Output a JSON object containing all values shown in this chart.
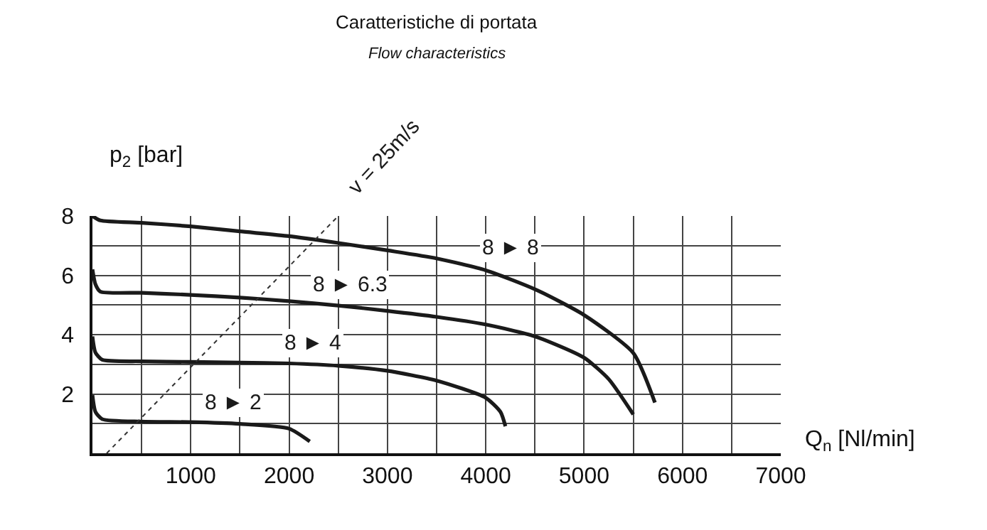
{
  "chart_data": {
    "type": "line",
    "title": "Caratteristiche di portata",
    "subtitle": "Flow characteristics",
    "xlabel": "Q$_{n}$ [Nl/min]",
    "ylabel": "p$_{2}$ [bar]",
    "xlim": [
      0,
      7000
    ],
    "ylim": [
      0,
      8
    ],
    "xticks": [
      {
        "value": 500,
        "label": null
      },
      1000,
      {
        "value": 1500,
        "label": null
      },
      2000,
      {
        "value": 2500,
        "label": null
      },
      3000,
      {
        "value": 3500,
        "label": null
      },
      4000,
      {
        "value": 4500,
        "label": null
      },
      5000,
      {
        "value": 5500,
        "label": null
      },
      6000,
      {
        "value": 6500,
        "label": null
      },
      7000
    ],
    "yticks": [
      {
        "value": 1,
        "label": null
      },
      2,
      {
        "value": 3,
        "label": null
      },
      4,
      {
        "value": 5,
        "label": null
      },
      6,
      {
        "value": 7,
        "label": null
      },
      8
    ],
    "grid": true,
    "legend": false,
    "marker": "none",
    "series": [
      {
        "name": "8 ► 8",
        "color": "#1a1a1a",
        "x": [
          0,
          80,
          500,
          1000,
          1500,
          2000,
          2500,
          3000,
          3500,
          4000,
          4500,
          5000,
          5500,
          5720
        ],
        "values": [
          8.0,
          7.85,
          7.77,
          7.65,
          7.48,
          7.32,
          7.09,
          6.84,
          6.57,
          6.17,
          5.53,
          4.66,
          3.38,
          1.71
        ]
      },
      {
        "name": "8 ► 6.3",
        "color": "#1a1a1a",
        "x": [
          0,
          30,
          80,
          500,
          1000,
          1500,
          2000,
          2500,
          3000,
          3500,
          4000,
          4500,
          5000,
          5250,
          5500
        ],
        "values": [
          6.2,
          5.7,
          5.45,
          5.41,
          5.34,
          5.25,
          5.13,
          4.98,
          4.8,
          4.6,
          4.34,
          3.94,
          3.22,
          2.5,
          1.31
        ]
      },
      {
        "name": "8 ► 4",
        "color": "#1a1a1a",
        "x": [
          0,
          30,
          100,
          500,
          1000,
          1500,
          2000,
          2500,
          3000,
          3500,
          4000,
          4150,
          4200
        ],
        "values": [
          3.94,
          3.4,
          3.15,
          3.1,
          3.08,
          3.06,
          3.03,
          2.95,
          2.78,
          2.45,
          1.87,
          1.39,
          0.91
        ]
      },
      {
        "name": "8 ► 2",
        "color": "#1a1a1a",
        "x": [
          0,
          30,
          100,
          500,
          1000,
          1500,
          2000,
          2210
        ],
        "values": [
          1.96,
          1.4,
          1.15,
          1.07,
          1.05,
          0.99,
          0.83,
          0.4
        ]
      },
      {
        "name": "v = 25m/s",
        "color": "#333333",
        "line_style": "dotted",
        "x": [
          145,
          2500
        ],
        "values": [
          0,
          8
        ]
      }
    ]
  }
}
